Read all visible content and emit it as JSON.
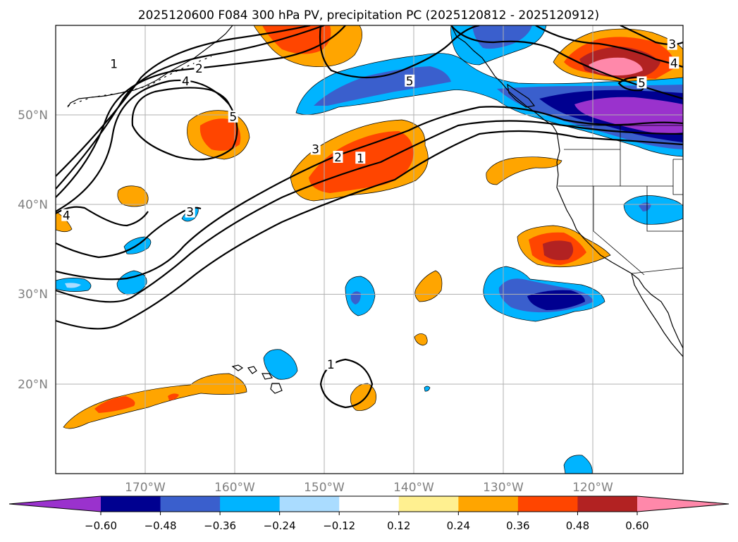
{
  "title": "2025120600 F084 300 hPa PV, precipitation PC (2025120812 - 2025120912)",
  "map": {
    "extent": {
      "lon_min": -180,
      "lon_max": -110,
      "lat_min": 10,
      "lat_max": 60
    },
    "lat_labels": [
      {
        "value": 50,
        "label": "50°N"
      },
      {
        "value": 40,
        "label": "40°N"
      },
      {
        "value": 30,
        "label": "30°N"
      },
      {
        "value": 20,
        "label": "20°N"
      }
    ],
    "lon_labels": [
      {
        "value": -170,
        "label": "170°W"
      },
      {
        "value": -160,
        "label": "160°W"
      },
      {
        "value": -150,
        "label": "150°W"
      },
      {
        "value": -140,
        "label": "140°W"
      },
      {
        "value": -130,
        "label": "130°W"
      },
      {
        "value": -120,
        "label": "120°W"
      }
    ],
    "pv_contour_labels": [
      {
        "text": "1",
        "lon": -173.5,
        "lat": 55.7
      },
      {
        "text": "2",
        "lon": -164.0,
        "lat": 55.2
      },
      {
        "text": "4",
        "lon": -165.5,
        "lat": 53.8
      },
      {
        "text": "5",
        "lon": -160.2,
        "lat": 49.8
      },
      {
        "text": "3",
        "lon": -151.0,
        "lat": 46.2
      },
      {
        "text": "2",
        "lon": -148.5,
        "lat": 45.3
      },
      {
        "text": "1",
        "lon": -146.0,
        "lat": 45.2
      },
      {
        "text": "5",
        "lon": -140.5,
        "lat": 53.8
      },
      {
        "text": "3",
        "lon": -111.2,
        "lat": 57.9
      },
      {
        "text": "4",
        "lon": -111.0,
        "lat": 55.8
      },
      {
        "text": "5",
        "lon": -114.6,
        "lat": 53.6
      },
      {
        "text": "4",
        "lon": -178.8,
        "lat": 38.8
      },
      {
        "text": "3",
        "lon": -165.0,
        "lat": 39.2
      },
      {
        "text": "1",
        "lon": -149.3,
        "lat": 22.2
      }
    ]
  },
  "colorbar": {
    "ticks": [
      "−0.60",
      "−0.48",
      "−0.36",
      "−0.24",
      "−0.12",
      "0.12",
      "0.24",
      "0.36",
      "0.48",
      "0.60"
    ],
    "colors": [
      "#9a32cd",
      "#000090",
      "#3a5fcd",
      "#00b4ff",
      "#aadcff",
      "#ffffff",
      "#fff090",
      "#ffa500",
      "#ff4500",
      "#b22222",
      "#ff88aa"
    ]
  }
}
